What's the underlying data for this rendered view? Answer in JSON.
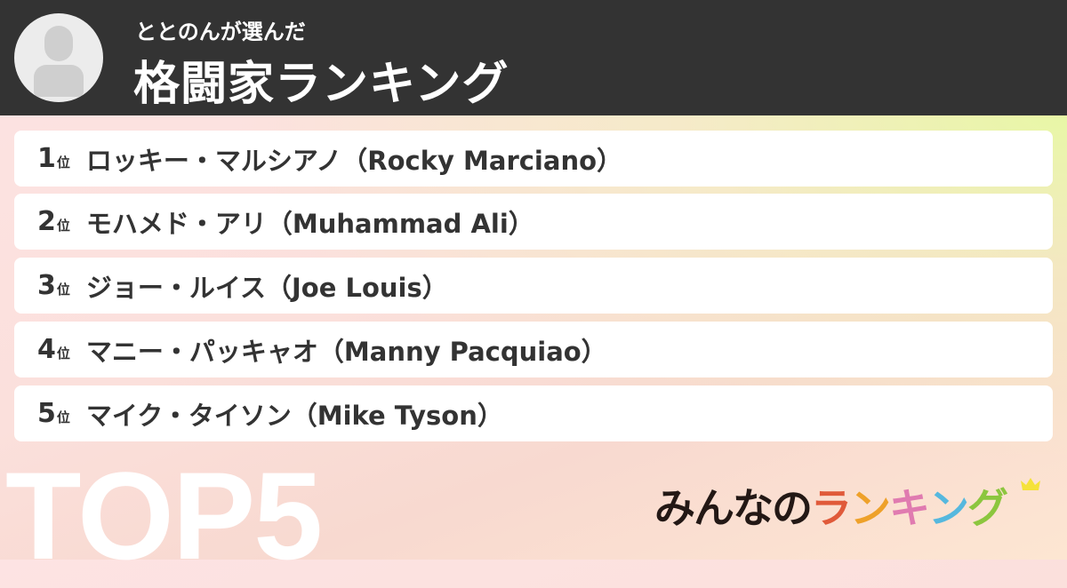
{
  "header": {
    "subtitle": "ととのんが選んだ",
    "title": "格闘家ランキング",
    "avatar_icon": "user-silhouette-icon"
  },
  "ranking": [
    {
      "rank": "1",
      "suffix": "位",
      "name": "ロッキー・マルシアノ（Rocky Marciano）"
    },
    {
      "rank": "2",
      "suffix": "位",
      "name": "モハメド・アリ（Muhammad Ali）"
    },
    {
      "rank": "3",
      "suffix": "位",
      "name": "ジョー・ルイス（Joe Louis）"
    },
    {
      "rank": "4",
      "suffix": "位",
      "name": "マニー・パッキャオ（Manny Pacquiao）"
    },
    {
      "rank": "5",
      "suffix": "位",
      "name": "マイク・タイソン（Mike Tyson）"
    }
  ],
  "badge": "TOP5",
  "logo": {
    "text": "みんなのランキング",
    "colors": [
      "#231815",
      "#e05a3a",
      "#eea12a",
      "#e07bb0",
      "#56b8de",
      "#8cc63f"
    ],
    "crown_color": "#f5e23a"
  }
}
